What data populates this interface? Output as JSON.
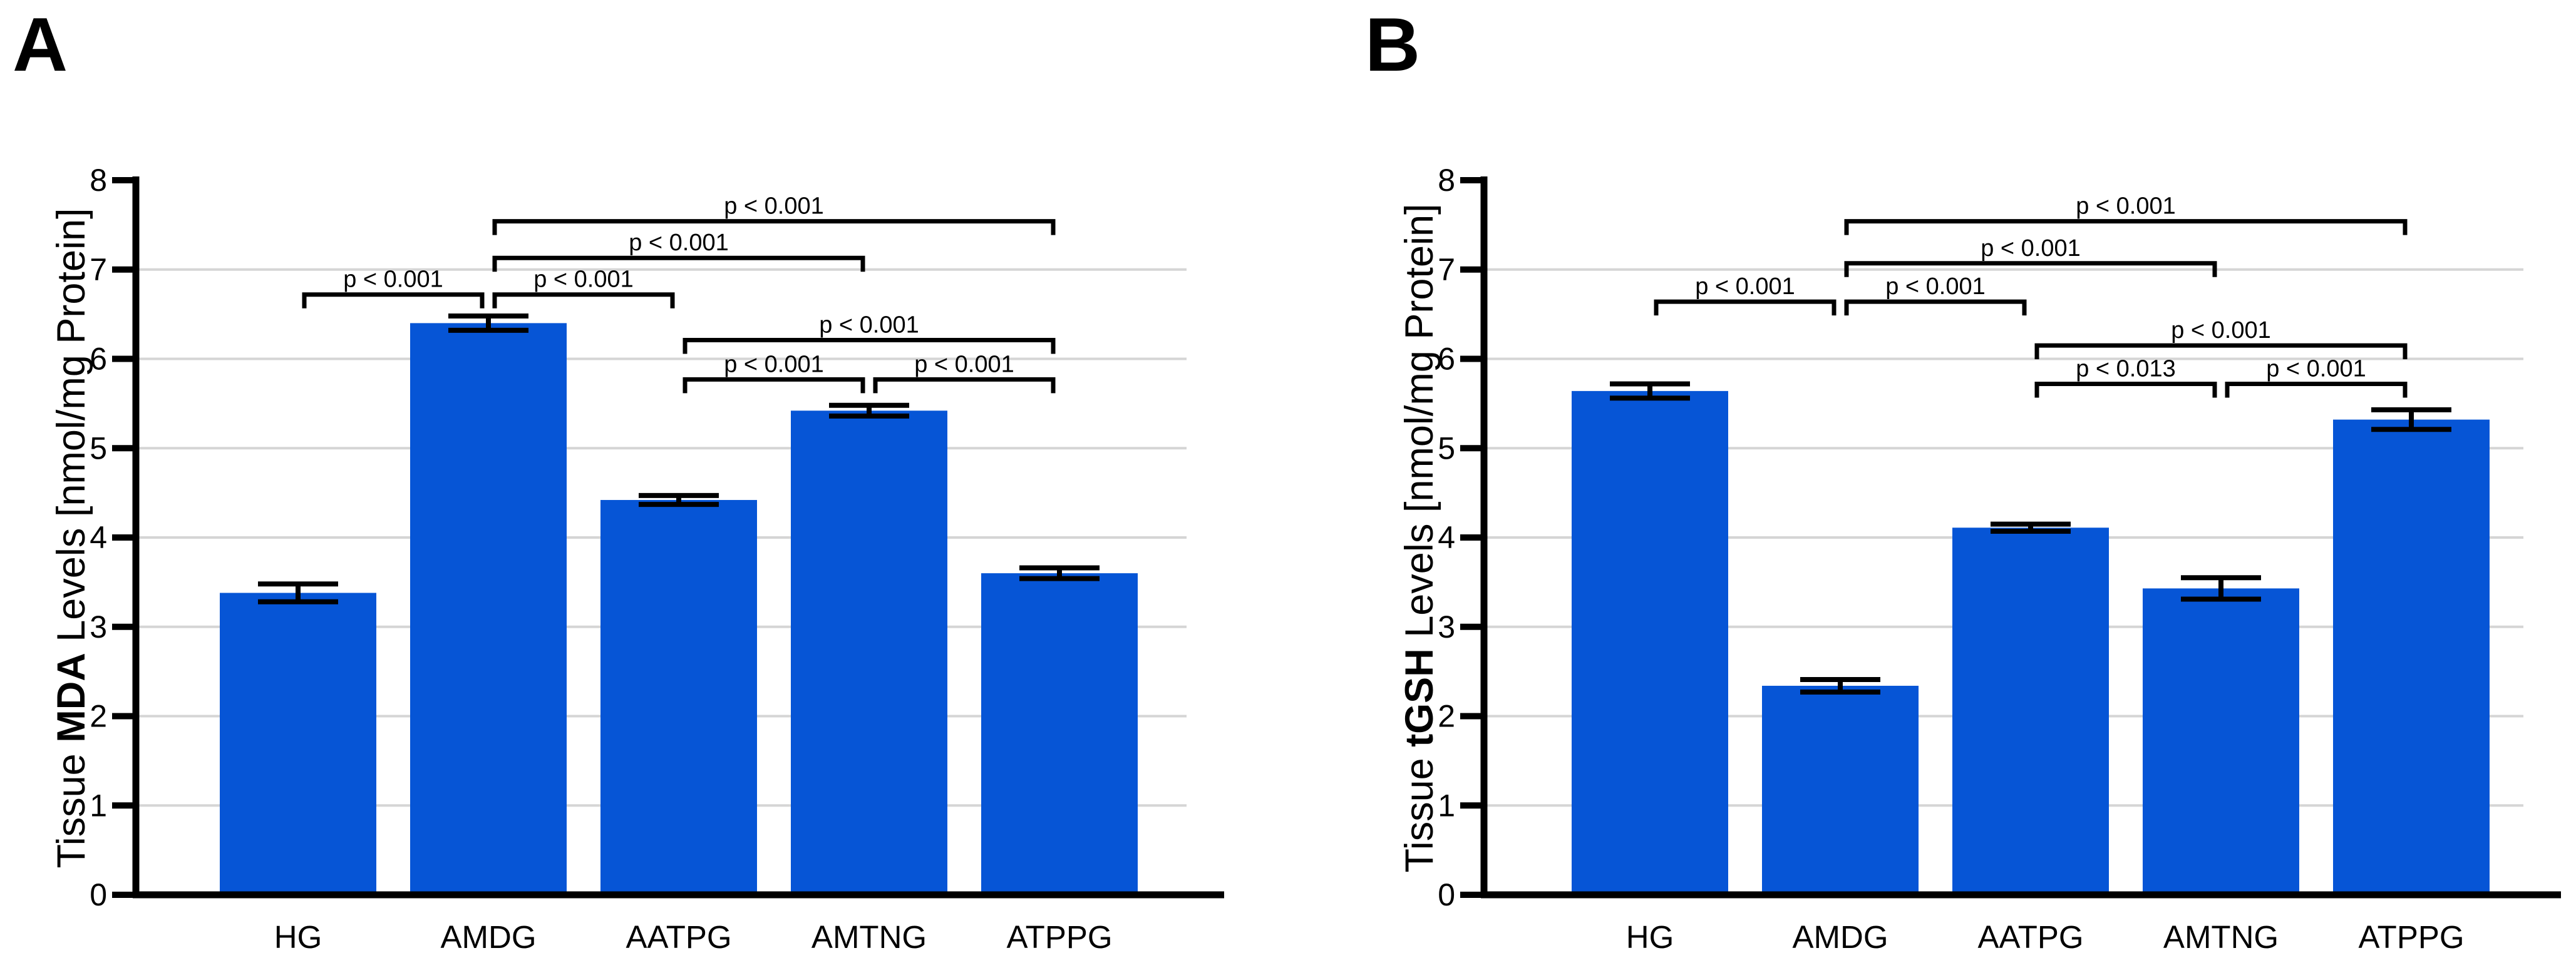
{
  "figure": {
    "background": "#ffffff",
    "bar_color": "#0655D6",
    "grid_color": "#D5D5D5",
    "axis_color": "#000000",
    "text_color": "#000000"
  },
  "chart_data": [
    {
      "type": "bar",
      "panel_label": "A",
      "ylabel": {
        "prefix": "Tissue ",
        "emphasis": "MDA",
        "suffix": " Levels [nmol/mg Protein]"
      },
      "ylabel_text": "Tissue MDA Levels [nmol/mg Protein]",
      "xlabel": "",
      "categories": [
        "HG",
        "AMDG",
        "AATPG",
        "AMTNG",
        "ATPPG"
      ],
      "values": [
        3.38,
        6.4,
        4.42,
        5.42,
        3.6
      ],
      "errors": [
        0.1,
        0.08,
        0.05,
        0.06,
        0.06
      ],
      "ylim": [
        0,
        8
      ],
      "yticks": [
        0,
        1,
        2,
        3,
        4,
        5,
        6,
        7,
        8
      ],
      "grid": "horizontal",
      "legend_position": "none",
      "significance_brackets": [
        {
          "from": "AATPG",
          "to": "AMTNG",
          "label": "p < 0.001",
          "height": 5.77
        },
        {
          "from": "AMTNG",
          "to": "ATPPG",
          "label": "p < 0.001",
          "height": 5.77
        },
        {
          "from": "AATPG",
          "to": "ATPPG",
          "label": "p < 0.001",
          "height": 6.21
        },
        {
          "from": "HG",
          "to": "AMDG",
          "label": "p < 0.001",
          "height": 6.72
        },
        {
          "from": "AMDG",
          "to": "AATPG",
          "label": "p < 0.001",
          "height": 6.72
        },
        {
          "from": "AMDG",
          "to": "AMTNG",
          "label": "p < 0.001",
          "height": 7.13
        },
        {
          "from": "AMDG",
          "to": "ATPPG",
          "label": "p < 0.001",
          "height": 7.54
        }
      ]
    },
    {
      "type": "bar",
      "panel_label": "B",
      "ylabel": {
        "prefix": "Tissue ",
        "emphasis": "tGSH",
        "suffix": " Levels [nmol/mg Protein]"
      },
      "ylabel_text": "Tissue tGSH Levels [nmol/mg Protein]",
      "xlabel": "",
      "categories": [
        "HG",
        "AMDG",
        "AATPG",
        "AMTNG",
        "ATPPG"
      ],
      "values": [
        5.64,
        2.34,
        4.11,
        3.43,
        5.32
      ],
      "errors": [
        0.08,
        0.07,
        0.04,
        0.12,
        0.11
      ],
      "ylim": [
        0,
        8
      ],
      "yticks": [
        0,
        1,
        2,
        3,
        4,
        5,
        6,
        7,
        8
      ],
      "grid": "horizontal",
      "legend_position": "none",
      "significance_brackets": [
        {
          "from": "AATPG",
          "to": "AMTNG",
          "label": "p < 0.013",
          "height": 5.72
        },
        {
          "from": "AMTNG",
          "to": "ATPPG",
          "label": "p < 0.001",
          "height": 5.72
        },
        {
          "from": "AATPG",
          "to": "ATPPG",
          "label": "p < 0.001",
          "height": 6.15
        },
        {
          "from": "HG",
          "to": "AMDG",
          "label": "p < 0.001",
          "height": 6.64
        },
        {
          "from": "AMDG",
          "to": "AATPG",
          "label": "p < 0.001",
          "height": 6.64
        },
        {
          "from": "AMDG",
          "to": "AMTNG",
          "label": "p < 0.001",
          "height": 7.07
        },
        {
          "from": "AMDG",
          "to": "ATPPG",
          "label": "p < 0.001",
          "height": 7.54
        }
      ]
    }
  ]
}
